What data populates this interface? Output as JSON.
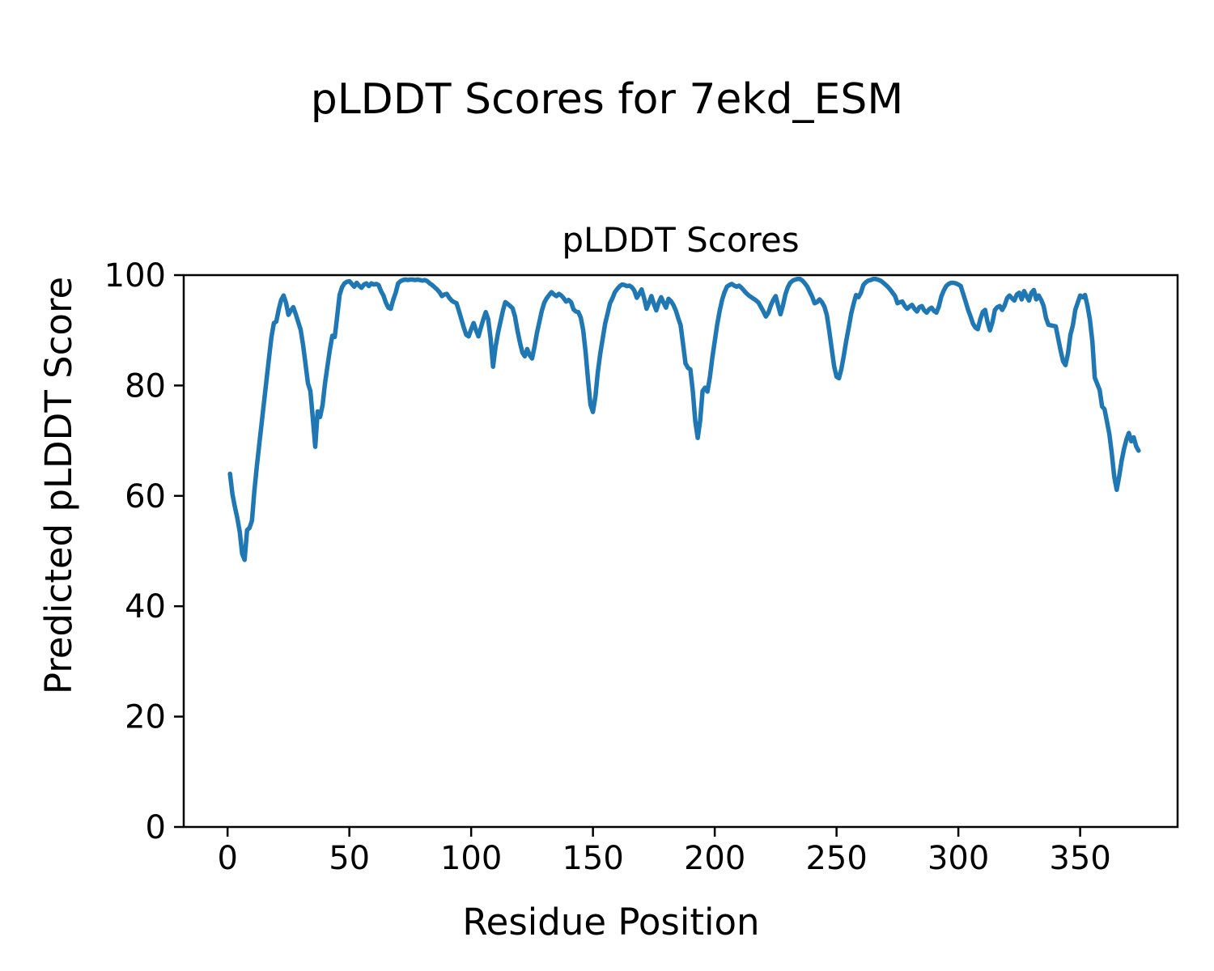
{
  "figure": {
    "suptitle": "pLDDT Scores for 7ekd_ESM",
    "background": "#ffffff"
  },
  "chart_data": {
    "type": "line",
    "title": "pLDDT Scores",
    "xlabel": "Residue Position",
    "ylabel": "Predicted pLDDT Score",
    "xlim": [
      -18,
      390
    ],
    "ylim": [
      0,
      100
    ],
    "xticks": [
      0,
      50,
      100,
      150,
      200,
      250,
      300,
      350
    ],
    "yticks": [
      0,
      20,
      40,
      60,
      80,
      100
    ],
    "grid": false,
    "legend": false,
    "axis_color": "#000000",
    "series": [
      {
        "name": "pLDDT",
        "color": "#1f77b4",
        "line_width": 5.5,
        "x_start": 1,
        "x_step": 1,
        "values": [
          64.0,
          60.3,
          58.0,
          56.0,
          53.5,
          49.5,
          48.4,
          53.8,
          54.2,
          55.5,
          60.9,
          65.3,
          69.3,
          73.2,
          77.1,
          81.0,
          84.9,
          88.8,
          91.3,
          91.6,
          93.8,
          95.5,
          96.3,
          95.0,
          92.8,
          93.6,
          94.2,
          92.9,
          91.5,
          90.1,
          87.3,
          83.9,
          80.4,
          79.0,
          74.1,
          68.9,
          75.3,
          74.3,
          76.5,
          80.4,
          83.5,
          86.5,
          89.0,
          88.8,
          92.5,
          96.4,
          97.8,
          98.5,
          98.8,
          98.9,
          98.4,
          97.9,
          98.6,
          98.1,
          97.7,
          98.3,
          98.5,
          98.0,
          98.5,
          98.3,
          98.4,
          98.2,
          97.1,
          96.3,
          95.0,
          94.1,
          93.9,
          95.5,
          96.8,
          98.5,
          98.9,
          99.1,
          99.2,
          99.1,
          99.2,
          99.2,
          99.1,
          99.2,
          99.1,
          99.0,
          99.1,
          98.9,
          98.5,
          98.2,
          97.8,
          97.4,
          96.9,
          96.2,
          96.5,
          96.6,
          95.9,
          95.4,
          95.1,
          94.9,
          93.5,
          92.0,
          90.5,
          89.2,
          88.9,
          90.2,
          91.3,
          90.0,
          88.9,
          90.5,
          92.0,
          93.3,
          92.0,
          88.5,
          83.4,
          87.0,
          89.5,
          91.5,
          93.5,
          95.1,
          94.8,
          94.4,
          94.0,
          92.5,
          90.0,
          87.8,
          86.0,
          85.3,
          86.6,
          85.5,
          84.9,
          87.0,
          89.5,
          91.5,
          93.5,
          95.0,
          95.8,
          96.4,
          96.9,
          96.5,
          96.2,
          96.6,
          96.3,
          95.8,
          95.2,
          95.5,
          95.1,
          93.8,
          93.4,
          93.3,
          92.3,
          90.0,
          86.0,
          81.0,
          76.5,
          75.2,
          78.0,
          82.5,
          85.8,
          88.5,
          91.2,
          93.0,
          94.9,
          95.8,
          96.9,
          97.5,
          98.0,
          98.3,
          98.2,
          98.0,
          98.1,
          97.8,
          97.2,
          95.9,
          96.6,
          97.4,
          95.8,
          93.9,
          95.0,
          96.2,
          94.8,
          93.6,
          95.0,
          96.0,
          95.0,
          94.1,
          95.7,
          95.3,
          94.6,
          93.6,
          92.2,
          90.9,
          87.5,
          84.0,
          83.2,
          82.9,
          79.0,
          73.5,
          70.5,
          73.6,
          79.0,
          79.6,
          78.9,
          81.5,
          85.0,
          88.0,
          91.0,
          93.5,
          95.5,
          96.9,
          97.9,
          98.2,
          98.4,
          98.1,
          97.9,
          98.1,
          97.7,
          97.2,
          96.7,
          96.3,
          96.0,
          95.7,
          95.4,
          95.0,
          94.2,
          93.4,
          92.5,
          93.2,
          94.5,
          95.5,
          96.2,
          94.5,
          92.9,
          94.5,
          96.5,
          97.8,
          98.6,
          99.0,
          99.2,
          99.3,
          99.3,
          99.0,
          98.5,
          97.9,
          97.0,
          96.1,
          94.9,
          95.1,
          95.6,
          95.1,
          94.3,
          92.8,
          89.9,
          86.7,
          83.5,
          81.6,
          81.3,
          83.0,
          85.5,
          88.2,
          90.5,
          93.0,
          94.8,
          96.4,
          96.0,
          96.8,
          98.2,
          98.7,
          99.0,
          99.1,
          99.3,
          99.3,
          99.2,
          99.0,
          98.7,
          98.3,
          97.9,
          97.4,
          96.8,
          96.2,
          94.9,
          95.1,
          95.2,
          94.4,
          93.9,
          94.3,
          94.6,
          93.9,
          93.4,
          94.2,
          94.4,
          93.6,
          93.2,
          93.8,
          94.1,
          93.5,
          93.2,
          94.3,
          96.1,
          97.2,
          98.0,
          98.4,
          98.6,
          98.6,
          98.5,
          98.3,
          98.0,
          96.6,
          95.2,
          93.7,
          92.5,
          91.2,
          90.5,
          90.2,
          92.0,
          93.3,
          93.7,
          91.5,
          90.0,
          91.5,
          93.7,
          94.2,
          94.4,
          93.7,
          94.5,
          95.8,
          96.3,
          95.8,
          95.4,
          96.5,
          96.8,
          95.6,
          97.1,
          96.2,
          95.4,
          96.8,
          97.3,
          95.6,
          96.3,
          95.5,
          94.4,
          92.2,
          91.0,
          90.9,
          90.8,
          90.7,
          88.5,
          86.3,
          84.4,
          83.7,
          85.8,
          89.2,
          90.9,
          93.7,
          95.0,
          96.3,
          96.0,
          96.4,
          94.5,
          92.0,
          88.0,
          81.4,
          80.3,
          79.2,
          76.2,
          75.7,
          73.5,
          71.2,
          67.7,
          63.5,
          61.1,
          63.5,
          66.3,
          68.5,
          70.2,
          71.4,
          69.9,
          70.6,
          69.0,
          68.2
        ]
      }
    ]
  }
}
